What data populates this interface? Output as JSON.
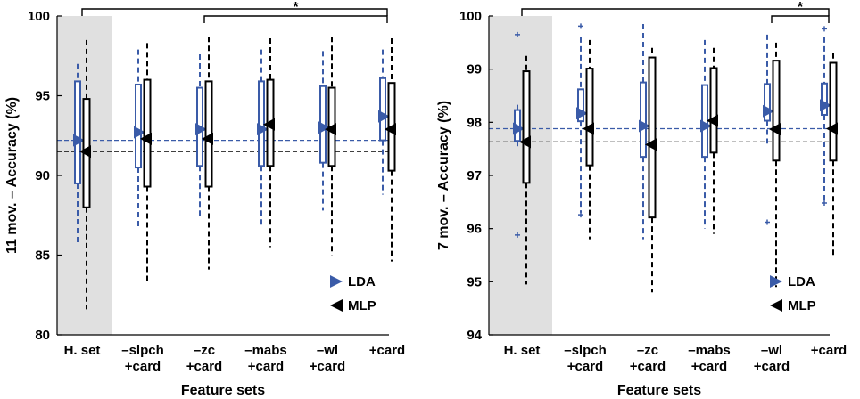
{
  "colors": {
    "lda": "#3a5ba8",
    "mlp": "#000000",
    "shade": "#e0e0e0"
  },
  "chart_data": [
    {
      "type": "box",
      "name": "left",
      "ylabel": "11 mov. – Accuracy (%)",
      "xlabel": "Feature sets",
      "ylim": [
        80,
        100
      ],
      "yticks": [
        80,
        85,
        90,
        95,
        100
      ],
      "categories": [
        [
          "H. set"
        ],
        [
          "–slpch",
          "+card"
        ],
        [
          "–zc",
          "+card"
        ],
        [
          "–mabs",
          "+card"
        ],
        [
          "–wl",
          "+card"
        ],
        [
          "+card"
        ]
      ],
      "legend": [
        "LDA",
        "MLP"
      ],
      "significance": [
        "*",
        "*"
      ],
      "ref_lines": {
        "LDA": 92.2,
        "MLP": 91.5
      },
      "series": [
        {
          "name": "LDA",
          "median": [
            92.2,
            92.7,
            92.9,
            92.9,
            93.0,
            93.7
          ],
          "q1": [
            89.5,
            90.5,
            90.6,
            90.6,
            90.8,
            92.2
          ],
          "q3": [
            95.9,
            95.7,
            95.5,
            95.9,
            95.6,
            96.1
          ],
          "whisker_low": [
            85.7,
            86.7,
            87.4,
            86.8,
            87.8,
            88.8
          ],
          "whisker_high": [
            97.0,
            97.9,
            97.6,
            97.9,
            97.8,
            97.9
          ],
          "outliers": [
            [],
            [],
            [],
            [],
            [],
            []
          ]
        },
        {
          "name": "MLP",
          "median": [
            91.5,
            92.3,
            92.3,
            93.2,
            92.9,
            92.9
          ],
          "q1": [
            88.0,
            89.3,
            89.3,
            90.6,
            90.6,
            90.3
          ],
          "q3": [
            94.8,
            96.0,
            95.9,
            96.0,
            95.5,
            95.8
          ],
          "whisker_low": [
            81.6,
            83.4,
            84.1,
            85.5,
            85.0,
            84.6
          ],
          "whisker_high": [
            98.5,
            98.3,
            98.7,
            98.6,
            98.7,
            98.6
          ],
          "outliers": [
            [],
            [],
            [],
            [],
            [],
            []
          ]
        }
      ]
    },
    {
      "type": "box",
      "name": "right",
      "ylabel": "7 mov. – Accuracy (%)",
      "xlabel": "Feature sets",
      "ylim": [
        94,
        100
      ],
      "yticks": [
        94,
        95,
        96,
        97,
        98,
        99,
        100
      ],
      "categories": [
        [
          "H. set"
        ],
        [
          "–slpch",
          "+card"
        ],
        [
          "–zc",
          "+card"
        ],
        [
          "–mabs",
          "+card"
        ],
        [
          "–wl",
          "+card"
        ],
        [
          "+card"
        ]
      ],
      "legend": [
        "LDA",
        "MLP"
      ],
      "significance": [
        "*",
        "*"
      ],
      "ref_lines": {
        "LDA": 97.88,
        "MLP": 97.63
      },
      "series": [
        {
          "name": "LDA",
          "median": [
            97.88,
            98.17,
            97.93,
            97.93,
            98.21,
            98.32
          ],
          "q1": [
            97.65,
            98.02,
            97.35,
            97.35,
            98.03,
            98.14
          ],
          "q3": [
            98.23,
            98.62,
            98.75,
            98.7,
            98.72,
            98.73
          ],
          "whisker_low": [
            97.5,
            96.3,
            95.8,
            96.0,
            97.6,
            96.5
          ],
          "whisker_high": [
            98.33,
            99.6,
            99.85,
            99.55,
            99.65,
            99.6
          ],
          "outliers": [
            [
              95.88,
              99.65
            ],
            [
              96.26,
              99.81
            ],
            [],
            [],
            [
              96.12
            ],
            [
              96.48,
              99.76
            ]
          ]
        },
        {
          "name": "MLP",
          "median": [
            97.63,
            97.88,
            97.58,
            98.03,
            97.87,
            97.88
          ],
          "q1": [
            96.86,
            97.19,
            96.21,
            97.43,
            97.28,
            97.28
          ],
          "q3": [
            98.96,
            99.01,
            99.22,
            99.02,
            99.16,
            99.12
          ],
          "whisker_low": [
            94.95,
            95.8,
            94.8,
            95.9,
            94.9,
            95.5
          ],
          "whisker_high": [
            99.25,
            99.55,
            99.4,
            99.4,
            99.5,
            99.3
          ],
          "outliers": [
            [],
            [],
            [],
            [],
            [],
            []
          ]
        }
      ]
    }
  ]
}
